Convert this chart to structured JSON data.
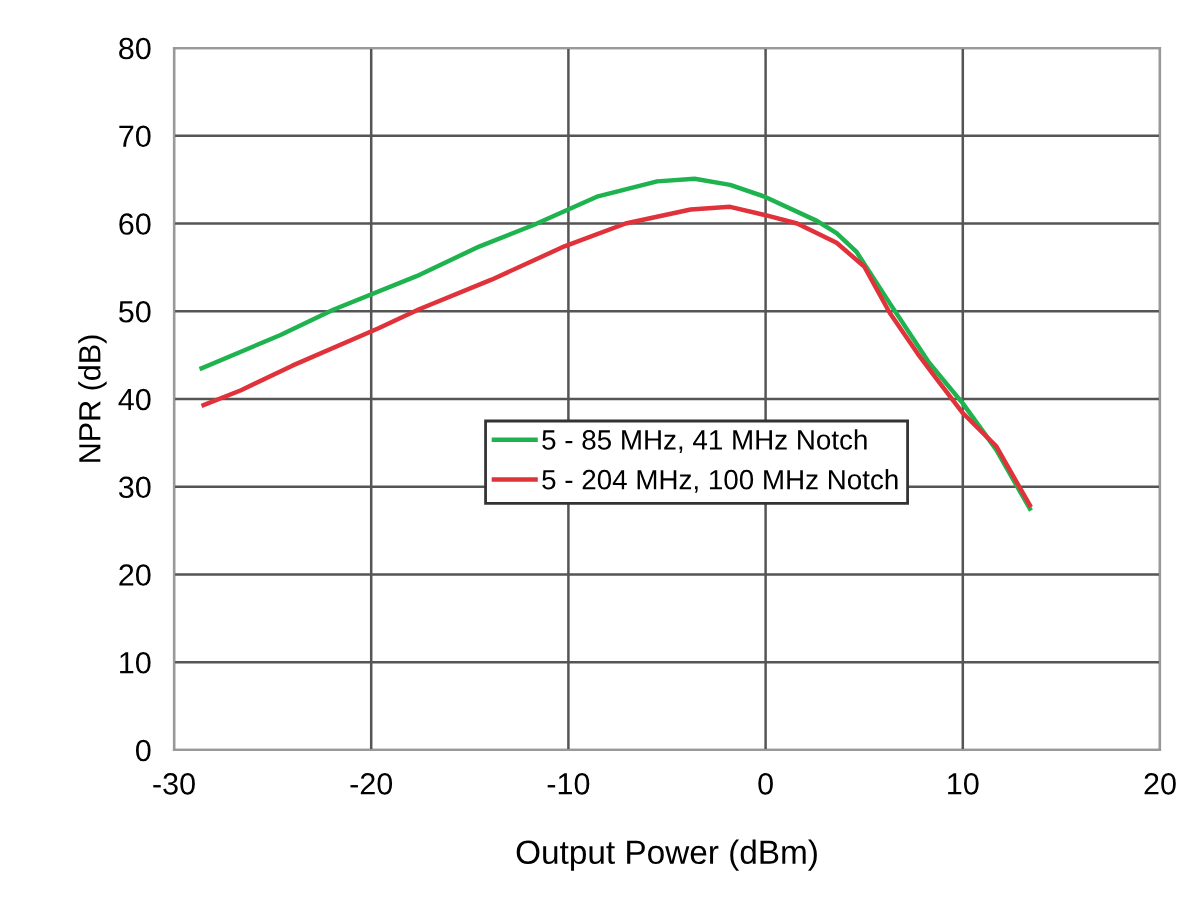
{
  "chart_data": {
    "type": "line",
    "xlabel": "Output Power (dBm)",
    "ylabel": "NPR (dB)",
    "xlim": [
      -30,
      20
    ],
    "xticks": [
      -30,
      -20,
      -10,
      0,
      10,
      20
    ],
    "ylim": [
      0,
      80
    ],
    "yticks": [
      0,
      10,
      20,
      30,
      40,
      50,
      60,
      70,
      80
    ],
    "grid": true,
    "legend": "center",
    "marker": "none",
    "line_style": "solid",
    "series": [
      {
        "name": "5 - 85 MHz, 41 MHz Notch",
        "color": "#1fb34f",
        "x": [
          -28.6,
          -24.6,
          -21.9,
          -17.7,
          -14.5,
          -11.8,
          -8.5,
          -5.5,
          -3.6,
          -1.8,
          -0.1,
          2.6,
          3.6,
          4.6,
          6.3,
          8.3,
          10.0,
          11.7,
          13.4
        ],
        "values": [
          43.5,
          47.3,
          50.2,
          54.0,
          57.4,
          59.8,
          63.1,
          64.8,
          65.1,
          64.4,
          63.1,
          60.3,
          58.9,
          56.8,
          50.9,
          44.1,
          39.5,
          34.2,
          27.5
        ]
      },
      {
        "name": "5 - 204 MHz, 100 MHz Notch",
        "color": "#e0323a",
        "x": [
          -28.5,
          -26.6,
          -24.0,
          -19.6,
          -17.6,
          -13.9,
          -10.2,
          -7.1,
          -3.8,
          -1.8,
          -0.1,
          1.6,
          3.6,
          5.0,
          6.3,
          7.7,
          8.7,
          10.0,
          11.7,
          13.4
        ],
        "values": [
          39.3,
          41.0,
          43.8,
          48.1,
          50.2,
          53.6,
          57.4,
          60.0,
          61.6,
          61.9,
          61.0,
          60.0,
          57.8,
          55.1,
          49.8,
          45.2,
          42.2,
          38.4,
          34.6,
          27.9
        ]
      }
    ]
  }
}
